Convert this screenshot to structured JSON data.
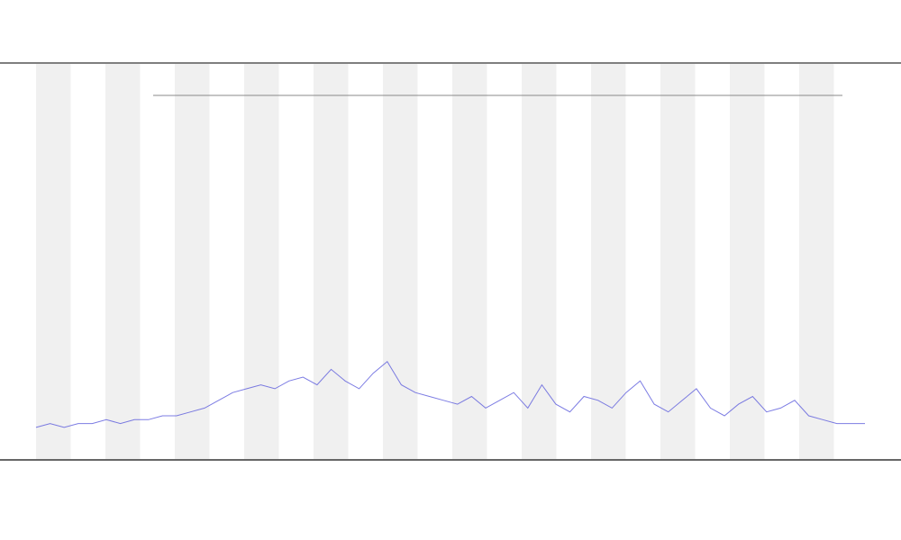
{
  "chart_data": {
    "type": "line",
    "values": [
      7,
      8,
      7,
      8,
      8,
      9,
      8,
      9,
      9,
      10,
      10,
      11,
      12,
      14,
      16,
      17,
      18,
      17,
      19,
      20,
      18,
      22,
      19,
      17,
      21,
      24,
      18,
      16,
      15,
      14,
      13,
      15,
      12,
      14,
      16,
      12,
      18,
      13,
      11,
      15,
      14,
      12,
      16,
      19,
      13,
      11,
      14,
      17,
      12,
      10,
      13,
      15,
      11,
      12,
      14,
      10,
      9,
      8,
      8,
      8
    ],
    "color": "#5b5bdc",
    "ylim": [
      0,
      100
    ]
  }
}
